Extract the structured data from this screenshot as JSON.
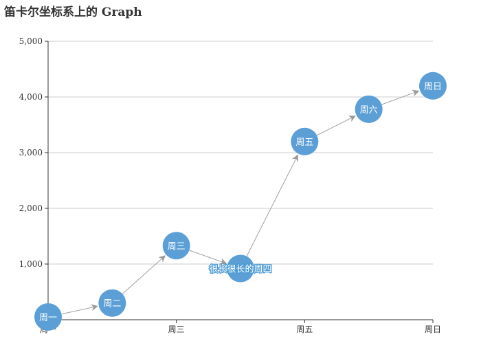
{
  "chart_data": {
    "type": "graph",
    "title": "笛卡尔坐标系上的 Graph",
    "x_categories": [
      "周一",
      "周二",
      "周三",
      "很长很长的周四",
      "周五",
      "周六",
      "周日"
    ],
    "x_tick_labels": [
      "周一",
      "周三",
      "周五",
      "周日"
    ],
    "x_tick_indices": [
      0,
      2,
      4,
      6
    ],
    "y_ticks": [
      1000,
      2000,
      3000,
      4000,
      5000
    ],
    "y_tick_labels": [
      "1,000",
      "2,000",
      "3,000",
      "4,000",
      "5,000"
    ],
    "ylim": [
      0,
      5000
    ],
    "grid": true,
    "nodes": [
      {
        "name": "周一",
        "x": "周一",
        "y": 50
      },
      {
        "name": "周二",
        "x": "周二",
        "y": 300
      },
      {
        "name": "周三",
        "x": "周三",
        "y": 1330
      },
      {
        "name": "很长很长的周四",
        "x": "很长很长的周四",
        "y": 920
      },
      {
        "name": "周五",
        "x": "周五",
        "y": 3200
      },
      {
        "name": "周六",
        "x": "周六",
        "y": 3780
      },
      {
        "name": "周日",
        "x": "周日",
        "y": 4200
      }
    ],
    "links": [
      [
        0,
        1
      ],
      [
        1,
        2
      ],
      [
        2,
        3
      ],
      [
        3,
        4
      ],
      [
        4,
        5
      ],
      [
        5,
        6
      ]
    ],
    "colors": {
      "node": "#5b9fd6",
      "link": "#a0a0a0",
      "grid": "#cccccc",
      "axis": "#333333",
      "long_label": "#4a9ad4"
    }
  }
}
